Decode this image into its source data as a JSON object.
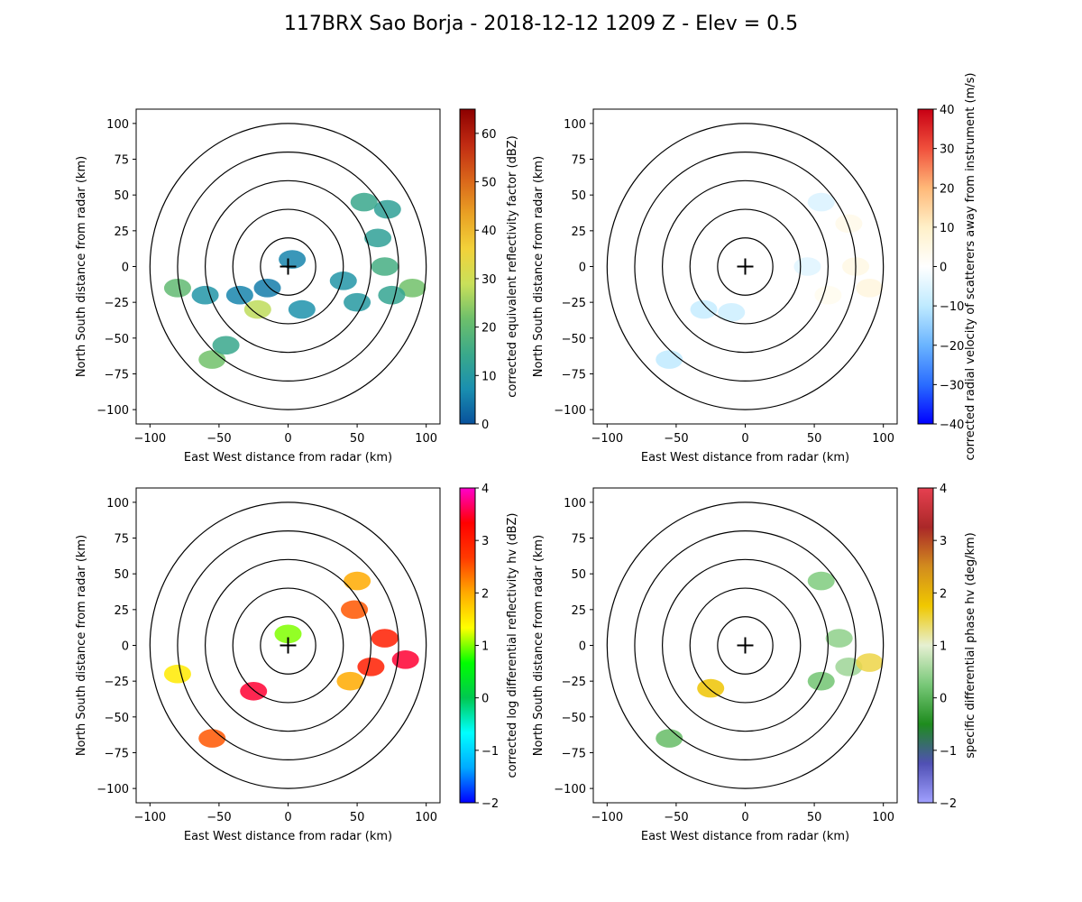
{
  "figure": {
    "suptitle": "117BRX Sao Borja - 2018-12-12 1209 Z -  Elev = 0.5"
  },
  "chart_data": [
    {
      "type": "heatmap",
      "variable": "reflectivity",
      "xlabel": "East West distance from radar (km)",
      "ylabel": "North South distance from radar (km)",
      "xlim": [
        -110,
        110
      ],
      "ylim": [
        -110,
        110
      ],
      "xticks": [
        -100,
        -50,
        0,
        50,
        100
      ],
      "yticks": [
        -100,
        -75,
        -50,
        -25,
        0,
        25,
        50,
        75,
        100
      ],
      "range_rings_km": [
        20,
        40,
        60,
        80,
        100
      ],
      "colorbar": {
        "label": "corrected equivalent reflectivity factor (dBZ)",
        "min": 0,
        "max": 65,
        "ticks": [
          0,
          10,
          20,
          30,
          40,
          50,
          60
        ],
        "colors": [
          "#08519c",
          "#1a8fb0",
          "#3aa98a",
          "#6dbf6b",
          "#c9e05a",
          "#f2d23a",
          "#e9a124",
          "#d9641a",
          "#c02a12",
          "#8c0000"
        ]
      },
      "echo_regions": [
        {
          "x": 72,
          "y": 40,
          "value": 12
        },
        {
          "x": 55,
          "y": 45,
          "value": 14
        },
        {
          "x": 65,
          "y": 20,
          "value": 12
        },
        {
          "x": 70,
          "y": 0,
          "value": 16
        },
        {
          "x": 90,
          "y": -15,
          "value": 22
        },
        {
          "x": 75,
          "y": -20,
          "value": 13
        },
        {
          "x": 50,
          "y": -25,
          "value": 10
        },
        {
          "x": 40,
          "y": -10,
          "value": 9
        },
        {
          "x": 3,
          "y": 5,
          "value": 6
        },
        {
          "x": -15,
          "y": -15,
          "value": 5
        },
        {
          "x": -35,
          "y": -20,
          "value": 6
        },
        {
          "x": -22,
          "y": -30,
          "value": 28
        },
        {
          "x": -80,
          "y": -15,
          "value": 20
        },
        {
          "x": -60,
          "y": -20,
          "value": 9
        },
        {
          "x": -55,
          "y": -65,
          "value": 22
        },
        {
          "x": -45,
          "y": -55,
          "value": 14
        },
        {
          "x": 10,
          "y": -30,
          "value": 8
        }
      ]
    },
    {
      "type": "heatmap",
      "variable": "velocity",
      "xlabel": "East West distance from radar (km)",
      "ylabel": "North South distance from radar (km)",
      "xlim": [
        -110,
        110
      ],
      "ylim": [
        -110,
        110
      ],
      "xticks": [
        -100,
        -50,
        0,
        50,
        100
      ],
      "yticks": [
        -100,
        -75,
        -50,
        -25,
        0,
        25,
        50,
        75,
        100
      ],
      "range_rings_km": [
        20,
        40,
        60,
        80,
        100
      ],
      "colorbar": {
        "label": "corrected radial velocity of scatterers away from instrument (m/s)",
        "min": -40,
        "max": 40,
        "ticks": [
          -40,
          -30,
          -20,
          -10,
          0,
          10,
          20,
          30,
          40
        ],
        "colors": [
          "#0000ff",
          "#2a6cff",
          "#6ab4ff",
          "#bfeaff",
          "#ffffff",
          "#fff0c8",
          "#ffb878",
          "#f0503c",
          "#c80014"
        ]
      },
      "echo_regions": [
        {
          "x": 55,
          "y": 45,
          "value": -6
        },
        {
          "x": 75,
          "y": 30,
          "value": 4
        },
        {
          "x": 80,
          "y": 0,
          "value": 5
        },
        {
          "x": 90,
          "y": -15,
          "value": 6
        },
        {
          "x": 60,
          "y": -20,
          "value": 3
        },
        {
          "x": 45,
          "y": 0,
          "value": -5
        },
        {
          "x": -55,
          "y": -65,
          "value": -10
        },
        {
          "x": -30,
          "y": -30,
          "value": -9
        },
        {
          "x": -10,
          "y": -32,
          "value": -8
        }
      ]
    },
    {
      "type": "heatmap",
      "variable": "differential_reflectivity",
      "xlabel": "East West distance from radar (km)",
      "ylabel": "North South distance from radar (km)",
      "xlim": [
        -110,
        110
      ],
      "ylim": [
        -110,
        110
      ],
      "xticks": [
        -100,
        -50,
        0,
        50,
        100
      ],
      "yticks": [
        -100,
        -75,
        -50,
        -25,
        0,
        25,
        50,
        75,
        100
      ],
      "range_rings_km": [
        20,
        40,
        60,
        80,
        100
      ],
      "colorbar": {
        "label": "corrected log differential reflectivity hv (dBZ)",
        "min": -2,
        "max": 4,
        "ticks": [
          -2,
          -1,
          0,
          1,
          2,
          3,
          4
        ],
        "colors": [
          "#0000ff",
          "#00aaff",
          "#00ffff",
          "#00c850",
          "#00ff00",
          "#ffff00",
          "#ffaa00",
          "#ff3a00",
          "#ff0000",
          "#ff00cc"
        ]
      },
      "echo_regions": [
        {
          "x": 50,
          "y": 45,
          "value": 2
        },
        {
          "x": 48,
          "y": 25,
          "value": 2.5
        },
        {
          "x": 70,
          "y": 5,
          "value": 3
        },
        {
          "x": 60,
          "y": -15,
          "value": 3
        },
        {
          "x": 85,
          "y": -10,
          "value": 3.5
        },
        {
          "x": 45,
          "y": -25,
          "value": 2
        },
        {
          "x": -25,
          "y": -32,
          "value": 3.5
        },
        {
          "x": -55,
          "y": -65,
          "value": 2.5
        },
        {
          "x": -80,
          "y": -20,
          "value": 1.5
        },
        {
          "x": 0,
          "y": 8,
          "value": 1
        }
      ]
    },
    {
      "type": "heatmap",
      "variable": "specific_differential_phase",
      "xlabel": "East West distance from radar (km)",
      "ylabel": "North South distance from radar (km)",
      "xlim": [
        -110,
        110
      ],
      "ylim": [
        -110,
        110
      ],
      "xticks": [
        -100,
        -50,
        0,
        50,
        100
      ],
      "yticks": [
        -100,
        -75,
        -50,
        -25,
        0,
        25,
        50,
        75,
        100
      ],
      "range_rings_km": [
        20,
        40,
        60,
        80,
        100
      ],
      "colorbar": {
        "label": "specific differential phase hv (deg/km)",
        "min": -2,
        "max": 4,
        "ticks": [
          -2,
          -1,
          0,
          1,
          2,
          3,
          4
        ],
        "colors": [
          "#a0a0ff",
          "#5050b4",
          "#1e8c1e",
          "#78c878",
          "#e6f0d2",
          "#f0c800",
          "#d28c1e",
          "#aa2828",
          "#e64050"
        ]
      },
      "echo_regions": [
        {
          "x": 55,
          "y": 45,
          "value": 0.3
        },
        {
          "x": 68,
          "y": 5,
          "value": 0.4
        },
        {
          "x": 75,
          "y": -15,
          "value": 0.5
        },
        {
          "x": 55,
          "y": -25,
          "value": 0.2
        },
        {
          "x": -25,
          "y": -30,
          "value": 1.8
        },
        {
          "x": -55,
          "y": -65,
          "value": 0.1
        },
        {
          "x": 90,
          "y": -12,
          "value": 1.5
        }
      ]
    }
  ]
}
